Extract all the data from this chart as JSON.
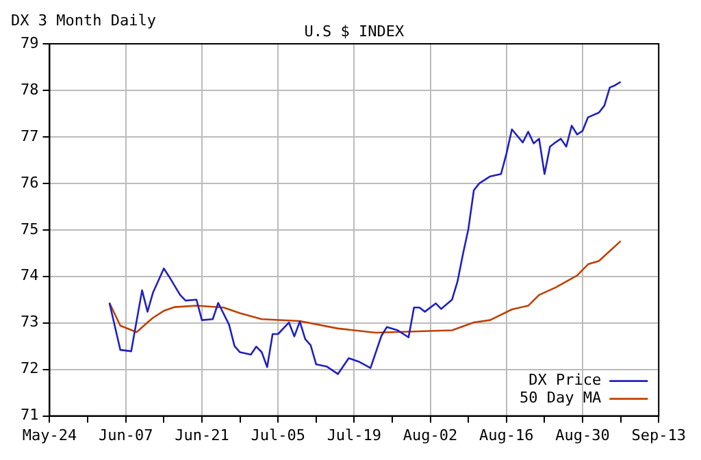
{
  "chart_data": {
    "type": "line",
    "title": "U.S $ INDEX",
    "subtitle": "DX 3 Month Daily",
    "xlim": [
      "--05-24",
      "--09-13"
    ],
    "xticks": [
      {
        "value": "--05-24",
        "label": "May-24"
      },
      {
        "value": "--05-31",
        "label": null
      },
      {
        "value": "--06-07",
        "label": "Jun-07"
      },
      {
        "value": "--06-14",
        "label": null
      },
      {
        "value": "--06-21",
        "label": "Jun-21"
      },
      {
        "value": "--06-28",
        "label": null
      },
      {
        "value": "--07-05",
        "label": "Jul-05"
      },
      {
        "value": "--07-12",
        "label": null
      },
      {
        "value": "--07-19",
        "label": "Jul-19"
      },
      {
        "value": "--07-26",
        "label": null
      },
      {
        "value": "--08-02",
        "label": "Aug-02"
      },
      {
        "value": "--08-09",
        "label": null
      },
      {
        "value": "--08-16",
        "label": "Aug-16"
      },
      {
        "value": "--08-23",
        "label": null
      },
      {
        "value": "--08-30",
        "label": "Aug-30"
      },
      {
        "value": "--09-06",
        "label": null
      },
      {
        "value": "--09-13",
        "label": "Sep-13"
      }
    ],
    "ylim": [
      71,
      79
    ],
    "yticks": [
      71,
      72,
      73,
      74,
      75,
      76,
      77,
      78,
      79
    ],
    "grid": true,
    "legend": "bottom right",
    "marker": "none",
    "line_style": "solid",
    "series": [
      {
        "name": "DX Price",
        "color": "#2020c0",
        "x": [
          "--06-04",
          "--06-06",
          "--06-08",
          "--06-10",
          "--06-11",
          "--06-12",
          "--06-14",
          "--06-15",
          "--06-17",
          "--06-18",
          "--06-20",
          "--06-21",
          "--06-23",
          "--06-24",
          "--06-26",
          "--06-27",
          "--06-28",
          "--06-30",
          "--07-01",
          "--07-02",
          "--07-03",
          "--07-04",
          "--07-05",
          "--07-07",
          "--07-08",
          "--07-09",
          "--07-10",
          "--07-11",
          "--07-12",
          "--07-14",
          "--07-16",
          "--07-18",
          "--07-20",
          "--07-22",
          "--07-24",
          "--07-25",
          "--07-27",
          "--07-29",
          "--07-30",
          "--07-31",
          "--08-01",
          "--08-03",
          "--08-04",
          "--08-06",
          "--08-07",
          "--08-08",
          "--08-09",
          "--08-10",
          "--08-11",
          "--08-13",
          "--08-15",
          "--08-16",
          "--08-17",
          "--08-19",
          "--08-20",
          "--08-21",
          "--08-22",
          "--08-23",
          "--08-24",
          "--08-25",
          "--08-26",
          "--08-27",
          "--08-28",
          "--08-29",
          "--08-30",
          "--08-31",
          "--09-02",
          "--09-03",
          "--09-04",
          "--09-05",
          "--09-06"
        ],
        "values": [
          73.43,
          72.42,
          72.39,
          73.7,
          73.24,
          73.65,
          74.17,
          73.99,
          73.6,
          73.48,
          73.5,
          73.06,
          73.08,
          73.43,
          72.96,
          72.5,
          72.37,
          72.32,
          72.49,
          72.37,
          72.05,
          72.76,
          72.76,
          73.01,
          72.71,
          73.03,
          72.65,
          72.52,
          72.11,
          72.06,
          71.9,
          72.24,
          72.16,
          72.03,
          72.72,
          72.91,
          72.84,
          72.69,
          73.33,
          73.33,
          73.24,
          73.42,
          73.3,
          73.5,
          73.89,
          74.48,
          75.02,
          75.85,
          76.0,
          76.15,
          76.2,
          76.64,
          77.16,
          76.88,
          77.11,
          76.86,
          76.96,
          76.2,
          76.79,
          76.88,
          76.96,
          76.79,
          77.24,
          77.05,
          77.13,
          77.42,
          77.52,
          77.67,
          78.06,
          78.11,
          78.18
        ]
      },
      {
        "name": "50 Day MA",
        "color": "#c04000",
        "x": [
          "--06-04",
          "--06-06",
          "--06-09",
          "--06-11",
          "--06-12",
          "--06-14",
          "--06-16",
          "--06-20",
          "--06-25",
          "--06-28",
          "--07-02",
          "--07-09",
          "--07-16",
          "--07-23",
          "--08-06",
          "--08-10",
          "--08-13",
          "--08-17",
          "--08-20",
          "--08-22",
          "--08-25",
          "--08-29",
          "--08-31",
          "--09-02",
          "--09-06"
        ],
        "values": [
          73.43,
          72.94,
          72.8,
          73.01,
          73.11,
          73.26,
          73.34,
          73.37,
          73.33,
          73.21,
          73.08,
          73.04,
          72.88,
          72.79,
          72.84,
          73.01,
          73.06,
          73.29,
          73.37,
          73.6,
          73.76,
          74.02,
          74.26,
          74.33,
          74.76
        ]
      }
    ]
  }
}
